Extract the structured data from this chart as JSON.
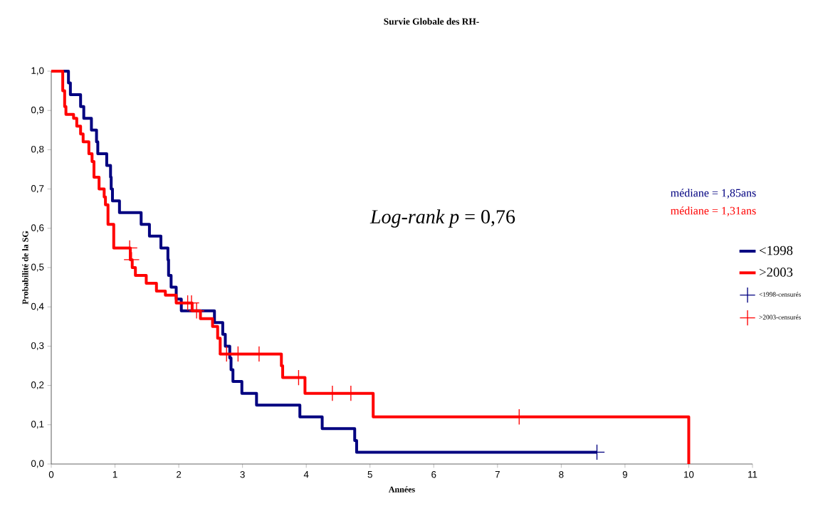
{
  "chart_data": {
    "type": "step",
    "title": "Survie Globale des RH-",
    "xlabel": "Années",
    "ylabel": "Probabilité de la SG",
    "xlim": [
      0,
      11
    ],
    "ylim": [
      0,
      1
    ],
    "xticks": [
      0,
      1,
      2,
      3,
      4,
      5,
      6,
      7,
      8,
      9,
      10,
      11
    ],
    "yticks": [
      {
        "value": 0,
        "label": "0,0"
      },
      {
        "value": 0.1,
        "label": "0,1"
      },
      {
        "value": 0.2,
        "label": "0,2"
      },
      {
        "value": 0.3,
        "label": "0,3"
      },
      {
        "value": 0.4,
        "label": "0,4"
      },
      {
        "value": 0.5,
        "label": "0,5"
      },
      {
        "value": 0.6,
        "label": "0,6"
      },
      {
        "value": 0.7,
        "label": "0,7"
      },
      {
        "value": 0.8,
        "label": "0,8"
      },
      {
        "value": 0.9,
        "label": "0,9"
      },
      {
        "value": 1,
        "label": "1,0"
      }
    ],
    "grid": false,
    "legend": "right",
    "annotations": [
      "médiane = 1,85ans",
      "médiane = 1,31ans",
      "*Log-rank p* = 0,76"
    ],
    "series": [
      {
        "name": "<1998",
        "color": "#000080",
        "x": [
          0,
          0.27,
          0.3,
          0.46,
          0.51,
          0.63,
          0.71,
          0.73,
          0.87,
          0.93,
          0.94,
          0.96,
          1.07,
          1.41,
          1.54,
          1.72,
          1.83,
          1.84,
          1.88,
          1.96,
          2.04,
          2.56,
          2.69,
          2.73,
          2.8,
          2.82,
          2.85,
          2.99,
          3.22,
          3.9,
          4.25,
          4.76,
          4.79,
          8.56
        ],
        "values": [
          1,
          0.97,
          0.94,
          0.91,
          0.88,
          0.85,
          0.82,
          0.79,
          0.76,
          0.73,
          0.7,
          0.67,
          0.64,
          0.61,
          0.58,
          0.55,
          0.52,
          0.48,
          0.45,
          0.42,
          0.39,
          0.36,
          0.33,
          0.3,
          0.27,
          0.24,
          0.21,
          0.18,
          0.15,
          0.12,
          0.09,
          0.06,
          0.03,
          0.03
        ]
      },
      {
        "name": ">2003",
        "color": "#ff0000",
        "x": [
          0,
          0.18,
          0.21,
          0.23,
          0.35,
          0.4,
          0.46,
          0.5,
          0.59,
          0.64,
          0.67,
          0.75,
          0.83,
          0.85,
          0.89,
          0.98,
          1.24,
          1.27,
          1.32,
          1.49,
          1.65,
          1.79,
          1.96,
          2.21,
          2.34,
          2.53,
          2.61,
          2.65,
          3.61,
          3.63,
          3.98,
          5.05,
          10
        ],
        "values": [
          1,
          0.95,
          0.91,
          0.89,
          0.88,
          0.86,
          0.84,
          0.82,
          0.79,
          0.77,
          0.73,
          0.7,
          0.68,
          0.66,
          0.61,
          0.55,
          0.52,
          0.5,
          0.48,
          0.46,
          0.44,
          0.43,
          0.41,
          0.39,
          0.37,
          0.35,
          0.32,
          0.28,
          0.25,
          0.22,
          0.18,
          0.12,
          0
        ]
      },
      {
        "name": "<1998-censurés",
        "type": "scatter",
        "marker": "cross",
        "color": "#000080",
        "x": [
          8.56
        ],
        "values": [
          0.03
        ]
      },
      {
        "name": ">2003-censurés",
        "type": "scatter",
        "marker": "cross",
        "color": "#ff0000",
        "x": [
          1.23,
          1.26,
          2.14,
          2.2,
          2.28,
          2.75,
          2.93,
          3.26,
          3.88,
          4.41,
          4.7,
          7.34
        ],
        "values": [
          0.55,
          0.52,
          0.41,
          0.41,
          0.39,
          0.28,
          0.28,
          0.28,
          0.22,
          0.18,
          0.18,
          0.12
        ]
      }
    ]
  }
}
